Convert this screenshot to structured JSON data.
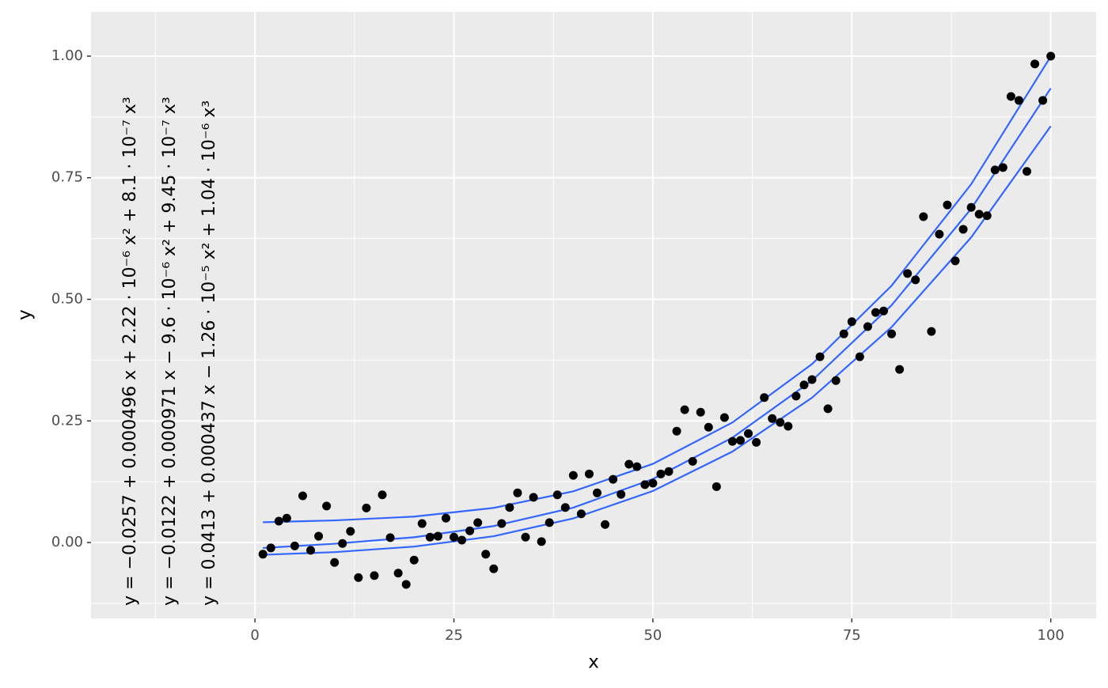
{
  "chart_data": {
    "type": "scatter",
    "x_label": "x",
    "y_label": "y",
    "xlim": [
      -20.6,
      105.7
    ],
    "ylim": [
      -0.156,
      1.091
    ],
    "xticks": [
      0,
      25,
      50,
      75,
      100
    ],
    "yticks": [
      {
        "value": 0,
        "label": "0.00"
      },
      {
        "value": 0.25,
        "label": "0.25"
      },
      {
        "value": 0.5,
        "label": "0.50"
      },
      {
        "value": 0.75,
        "label": "0.75"
      },
      {
        "value": 1,
        "label": "1.00"
      }
    ],
    "grid": true,
    "annotations": [
      "y = −0.0257 + 0.000496 x + 2.22 · 10⁻⁶ x² + 8.1 · 10⁻⁷ x³",
      "y = −0.0122 + 0.000971 x − 9.6 · 10⁻⁶ x² + 9.45 · 10⁻⁷ x³",
      "y = 0.0413 + 0.000437 x − 1.26 · 10⁻⁵ x² + 1.04 · 10⁻⁶ x³"
    ],
    "series": [
      {
        "type": "scatter",
        "color": "#000000",
        "x": [
          1,
          2,
          3,
          4,
          5,
          6,
          7,
          8,
          9,
          10,
          11,
          12,
          13,
          14,
          15,
          16,
          17,
          18,
          19,
          20,
          21,
          22,
          23,
          24,
          25,
          26,
          27,
          28,
          29,
          30,
          31,
          32,
          33,
          34,
          35,
          36,
          37,
          38,
          39,
          40,
          41,
          42,
          43,
          44,
          45,
          46,
          47,
          48,
          49,
          50,
          51,
          52,
          53,
          54,
          55,
          56,
          57,
          58,
          59,
          60,
          61,
          62,
          63,
          64,
          65,
          66,
          67,
          68,
          69,
          70,
          71,
          72,
          73,
          74,
          75,
          76,
          77,
          78,
          79,
          80,
          81,
          82,
          83,
          84,
          85,
          86,
          87,
          88,
          89,
          90,
          91,
          92,
          93,
          94,
          95,
          96,
          97,
          98,
          99,
          100
        ],
        "values": [
          -0.024,
          -0.011,
          0.044,
          0.05,
          -0.007,
          0.096,
          -0.016,
          0.013,
          0.075,
          -0.041,
          -0.002,
          0.023,
          -0.072,
          0.071,
          -0.068,
          0.098,
          0.01,
          -0.063,
          -0.086,
          -0.036,
          0.039,
          0.011,
          0.013,
          0.05,
          0.011,
          0.005,
          0.024,
          0.041,
          -0.024,
          -0.054,
          0.039,
          0.072,
          0.102,
          0.011,
          0.093,
          0.002,
          0.041,
          0.098,
          0.072,
          0.138,
          0.059,
          0.141,
          0.102,
          0.037,
          0.13,
          0.099,
          0.161,
          0.156,
          0.119,
          0.122,
          0.141,
          0.146,
          0.229,
          0.273,
          0.167,
          0.268,
          0.237,
          0.115,
          0.257,
          0.208,
          0.21,
          0.224,
          0.206,
          0.298,
          0.255,
          0.247,
          0.239,
          0.301,
          0.324,
          0.335,
          0.382,
          0.275,
          0.333,
          0.429,
          0.454,
          0.382,
          0.444,
          0.473,
          0.476,
          0.429,
          0.356,
          0.553,
          0.54,
          0.67,
          0.434,
          0.634,
          0.694,
          0.579,
          0.644,
          0.689,
          0.675,
          0.672,
          0.766,
          0.771,
          0.917,
          0.909,
          0.763,
          0.984,
          0.909,
          1.0
        ]
      },
      {
        "type": "line",
        "color": "#3366FF",
        "x": [
          1,
          10,
          20,
          30,
          40,
          50,
          60,
          70,
          80,
          90,
          100
        ],
        "values": [
          -0.0252,
          -0.0197,
          -0.0084,
          0.013,
          0.0495,
          0.1059,
          0.187,
          0.2977,
          0.4429,
          0.6274,
          0.8561
        ]
      },
      {
        "type": "line",
        "color": "#3366FF",
        "x": [
          1,
          10,
          20,
          30,
          40,
          50,
          60,
          70,
          80,
          90,
          100
        ],
        "values": [
          -0.0112,
          -0.0025,
          0.0109,
          0.0338,
          0.0718,
          0.1305,
          0.2156,
          0.3329,
          0.4879,
          0.6863,
          0.9339
        ]
      },
      {
        "type": "line",
        "color": "#3366FF",
        "x": [
          1,
          10,
          20,
          30,
          40,
          50,
          60,
          70,
          80,
          90,
          100
        ],
        "values": [
          0.0417,
          0.0455,
          0.0533,
          0.0712,
          0.1052,
          0.1617,
          0.2468,
          0.3669,
          0.5281,
          0.7367,
          0.9994
        ]
      }
    ]
  }
}
